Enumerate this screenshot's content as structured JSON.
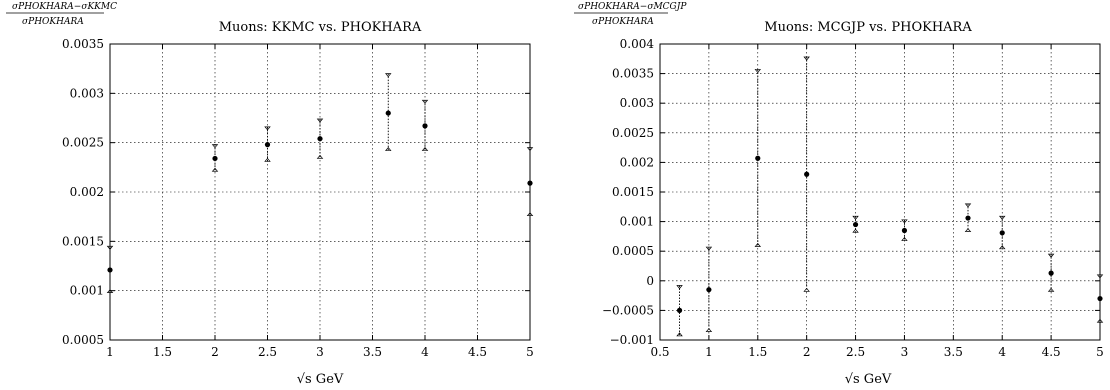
{
  "chart_data": [
    {
      "type": "scatter",
      "title": "Muons: KKMC vs. PHOKHARA",
      "ylabel_numerator": "σPHOKHARA−σKKMC",
      "ylabel_denominator": "σPHOKHARA",
      "xlabel": "√s GeV",
      "xlim": [
        1,
        5
      ],
      "ylim": [
        0.0005,
        0.0035
      ],
      "xticks": [
        1,
        1.5,
        2,
        2.5,
        3,
        3.5,
        4,
        4.5,
        5
      ],
      "xtick_labels": [
        "1",
        "1.5",
        "2",
        "2.5",
        "3",
        "3.5",
        "4",
        "4.5",
        "5"
      ],
      "yticks": [
        0.0005,
        0.001,
        0.0015,
        0.002,
        0.0025,
        0.003,
        0.0035
      ],
      "ytick_labels": [
        "0.0005",
        "0.001",
        "0.0015",
        "0.002",
        "0.0025",
        "0.003",
        "0.0035"
      ],
      "grid": true,
      "points": [
        {
          "x": 1.0,
          "y": 0.00121,
          "lo": 0.00098,
          "hi": 0.00145
        },
        {
          "x": 2.0,
          "y": 0.00234,
          "lo": 0.00221,
          "hi": 0.00248
        },
        {
          "x": 2.5,
          "y": 0.00248,
          "lo": 0.00231,
          "hi": 0.00266
        },
        {
          "x": 3.0,
          "y": 0.00254,
          "lo": 0.00234,
          "hi": 0.00274
        },
        {
          "x": 3.65,
          "y": 0.0028,
          "lo": 0.00242,
          "hi": 0.0032
        },
        {
          "x": 4.0,
          "y": 0.00267,
          "lo": 0.00242,
          "hi": 0.00293
        },
        {
          "x": 5.0,
          "y": 0.00209,
          "lo": 0.00176,
          "hi": 0.00245
        }
      ]
    },
    {
      "type": "scatter",
      "title": "Muons: MCGJP vs. PHOKHARA",
      "ylabel_numerator": "σPHOKHARA−σMCGJP",
      "ylabel_denominator": "σPHOKHARA",
      "xlabel": "√s GeV",
      "xlim": [
        0.5,
        5
      ],
      "ylim": [
        -0.001,
        0.004
      ],
      "xticks": [
        0.5,
        1,
        1.5,
        2,
        2.5,
        3,
        3.5,
        4,
        4.5,
        5
      ],
      "xtick_labels": [
        "0.5",
        "1",
        "1.5",
        "2",
        "2.5",
        "3",
        "3.5",
        "4",
        "4.5",
        "5"
      ],
      "yticks": [
        -0.001,
        -0.0005,
        0,
        0.0005,
        0.001,
        0.0015,
        0.002,
        0.0025,
        0.003,
        0.0035,
        0.004
      ],
      "ytick_labels": [
        "−0.001",
        "−0.0005",
        "0",
        "0.0005",
        "0.001",
        "0.0015",
        "0.002",
        "0.0025",
        "0.003",
        "0.0035",
        "0.004"
      ],
      "grid": true,
      "points": [
        {
          "x": 0.7,
          "y": -0.0005,
          "lo": -0.00093,
          "hi": -8e-05
        },
        {
          "x": 1.0,
          "y": -0.00015,
          "lo": -0.00086,
          "hi": 0.00057
        },
        {
          "x": 1.5,
          "y": 0.00207,
          "lo": 0.00058,
          "hi": 0.00357
        },
        {
          "x": 2.0,
          "y": 0.0018,
          "lo": -0.00018,
          "hi": 0.00378
        },
        {
          "x": 2.5,
          "y": 0.00095,
          "lo": 0.00082,
          "hi": 0.00109
        },
        {
          "x": 3.0,
          "y": 0.00085,
          "lo": 0.00068,
          "hi": 0.00103
        },
        {
          "x": 3.65,
          "y": 0.00106,
          "lo": 0.00083,
          "hi": 0.0013
        },
        {
          "x": 4.0,
          "y": 0.00081,
          "lo": 0.00054,
          "hi": 0.00109
        },
        {
          "x": 4.5,
          "y": 0.00013,
          "lo": -0.00018,
          "hi": 0.00045
        },
        {
          "x": 5.0,
          "y": -0.0003,
          "lo": -0.0007,
          "hi": 0.0001
        }
      ]
    }
  ]
}
